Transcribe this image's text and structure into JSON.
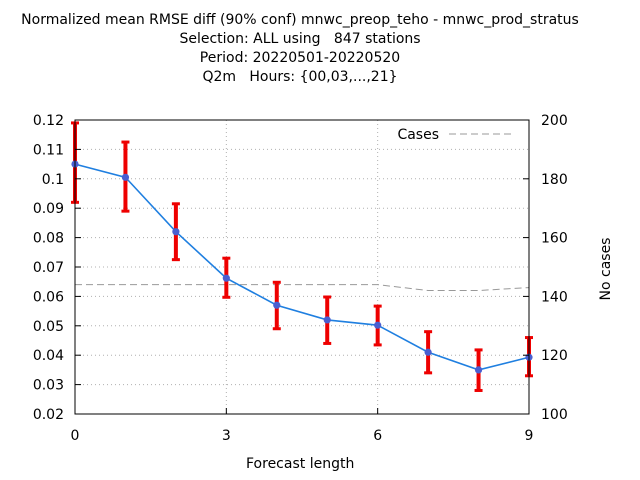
{
  "title_lines": [
    "Normalized mean RMSE diff (90% conf) mnwc_preop_teho - mnwc_prod_stratus",
    "Selection: ALL using   847 stations",
    "Period: 20220501-20220520",
    "Q2m   Hours: {00,03,...,21}"
  ],
  "chart_data": {
    "type": "line",
    "xlabel": "Forecast length",
    "y2label": "No cases",
    "xlim": [
      0,
      9
    ],
    "ylim": [
      0.02,
      0.12
    ],
    "y2lim": [
      100,
      200
    ],
    "xticks": [
      0,
      3,
      6,
      9
    ],
    "yticks": [
      0.02,
      0.03,
      0.04,
      0.05,
      0.06,
      0.07,
      0.08,
      0.09,
      0.1,
      0.11,
      0.12
    ],
    "yticklabels": [
      "0.02",
      "0.03",
      "0.04",
      "0.05",
      "0.06",
      "0.07",
      "0.08",
      "0.09",
      "0.1",
      "0.11",
      "0.12"
    ],
    "y2ticks": [
      100,
      120,
      140,
      160,
      180,
      200
    ],
    "grid": true,
    "legend_position": "top-right",
    "series": [
      {
        "axis": "left",
        "color": "#1f7fe0",
        "marker_color": "#4a5fd0",
        "errorbar_color": "#ee0000",
        "x": [
          0,
          1,
          2,
          3,
          4,
          5,
          6,
          7,
          8,
          9
        ],
        "y": [
          0.105,
          0.1005,
          0.082,
          0.0662,
          0.057,
          0.052,
          0.0502,
          0.041,
          0.035,
          0.0393
        ],
        "err_low": [
          0.092,
          0.089,
          0.0725,
          0.0597,
          0.049,
          0.044,
          0.0435,
          0.034,
          0.028,
          0.033
        ],
        "err_high": [
          0.119,
          0.1125,
          0.0915,
          0.073,
          0.0648,
          0.0598,
          0.0567,
          0.048,
          0.0418,
          0.046
        ]
      },
      {
        "name": "Cases",
        "axis": "right",
        "color": "#999999",
        "dash": "dashed",
        "x": [
          0,
          1,
          2,
          3,
          4,
          5,
          6,
          7,
          8,
          9
        ],
        "y": [
          144,
          144,
          144,
          144,
          144,
          144,
          144,
          142,
          142,
          143
        ]
      }
    ]
  }
}
